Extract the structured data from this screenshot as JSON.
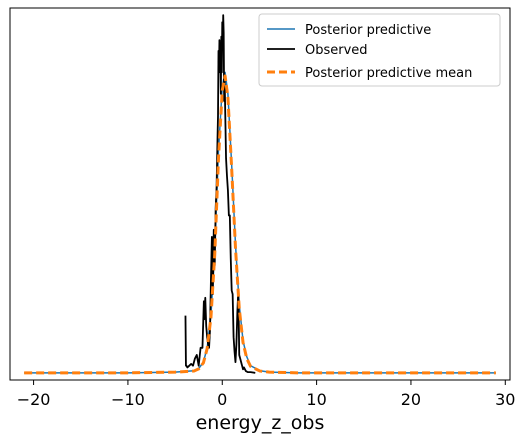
{
  "chart_data": {
    "type": "line",
    "title": "",
    "xlabel": "energy_z_obs",
    "ylabel": "",
    "xlim": [
      -22.5,
      30.5
    ],
    "ylim": [
      -0.02,
      1.02
    ],
    "x_ticks": [
      -20,
      -10,
      0,
      10,
      20,
      30
    ],
    "x_tick_labels": [
      "−20",
      "−10",
      "0",
      "10",
      "20",
      "30"
    ],
    "y_ticks_visible": false,
    "grid": false,
    "legend_position": "top-right",
    "colors": {
      "posterior_predictive": "#1f77b4",
      "observed": "#000000",
      "posterior_predictive_mean": "#ff7f0e"
    },
    "series": [
      {
        "name": "Posterior predictive",
        "style": "solid",
        "x": [
          -21,
          -10,
          -5,
          -3,
          -2.5,
          -2,
          -1.6,
          -1.2,
          -0.8,
          -0.4,
          0,
          0.3,
          0.6,
          1,
          1.4,
          1.8,
          2.2,
          2.6,
          3,
          4,
          5,
          8,
          29
        ],
        "y": [
          0,
          0,
          0.002,
          0.006,
          0.012,
          0.03,
          0.07,
          0.16,
          0.34,
          0.62,
          0.8,
          0.84,
          0.78,
          0.58,
          0.36,
          0.19,
          0.09,
          0.045,
          0.02,
          0.006,
          0.002,
          0,
          0
        ]
      },
      {
        "name": "Observed",
        "style": "solid",
        "x": [
          -3.9,
          -3.85,
          -3.8,
          -3.7,
          -3.5,
          -3.3,
          -3.1,
          -2.9,
          -2.7,
          -2.5,
          -2.3,
          -2.1,
          -1.95,
          -1.9,
          -1.8,
          -1.7,
          -1.6,
          -1.5,
          -1.4,
          -1.3,
          -1.2,
          -1.1,
          -1.0,
          -0.9,
          -0.8,
          -0.7,
          -0.6,
          -0.5,
          -0.45,
          -0.4,
          -0.35,
          -0.3,
          -0.25,
          -0.2,
          -0.15,
          -0.1,
          -0.05,
          0,
          0.05,
          0.1,
          0.15,
          0.2,
          0.25,
          0.3,
          0.4,
          0.5,
          0.6,
          0.7,
          0.8,
          0.9,
          1.0,
          1.1,
          1.2,
          1.3,
          1.4,
          1.5,
          1.6,
          1.7,
          1.8,
          1.9,
          2.0,
          2.1,
          2.2,
          2.3,
          2.5,
          2.7,
          3.0,
          3.5
        ],
        "y": [
          0.16,
          0.02,
          0.02,
          0.015,
          0.02,
          0.025,
          0.02,
          0.04,
          0.05,
          0.02,
          0.07,
          0.07,
          0.2,
          0.15,
          0.21,
          0.13,
          0.1,
          0.08,
          0.07,
          0.12,
          0.26,
          0.38,
          0.22,
          0.4,
          0.3,
          0.46,
          0.52,
          0.66,
          0.72,
          0.9,
          0.84,
          0.93,
          0.84,
          0.87,
          0.78,
          0.94,
          0.84,
          0.98,
          0.91,
          1.0,
          0.95,
          0.76,
          0.83,
          0.75,
          0.6,
          0.55,
          0.51,
          0.44,
          0.44,
          0.32,
          0.23,
          0.22,
          0.1,
          0.06,
          0.03,
          0.08,
          0.17,
          0.23,
          0.05,
          0.04,
          0.03,
          0.02,
          0.01,
          0.015,
          0.005,
          0.002,
          0.002,
          0
        ]
      },
      {
        "name": "Posterior predictive mean",
        "style": "dashed",
        "x": [
          -21,
          -10,
          -5,
          -3,
          -2.5,
          -2,
          -1.6,
          -1.2,
          -0.8,
          -0.4,
          0,
          0.3,
          0.6,
          1,
          1.4,
          1.8,
          2.2,
          2.6,
          3,
          4,
          5,
          8,
          29
        ],
        "y": [
          0,
          0,
          0.002,
          0.005,
          0.011,
          0.028,
          0.068,
          0.155,
          0.33,
          0.6,
          0.79,
          0.83,
          0.77,
          0.57,
          0.35,
          0.18,
          0.085,
          0.04,
          0.018,
          0.005,
          0.002,
          0,
          0
        ]
      }
    ]
  }
}
